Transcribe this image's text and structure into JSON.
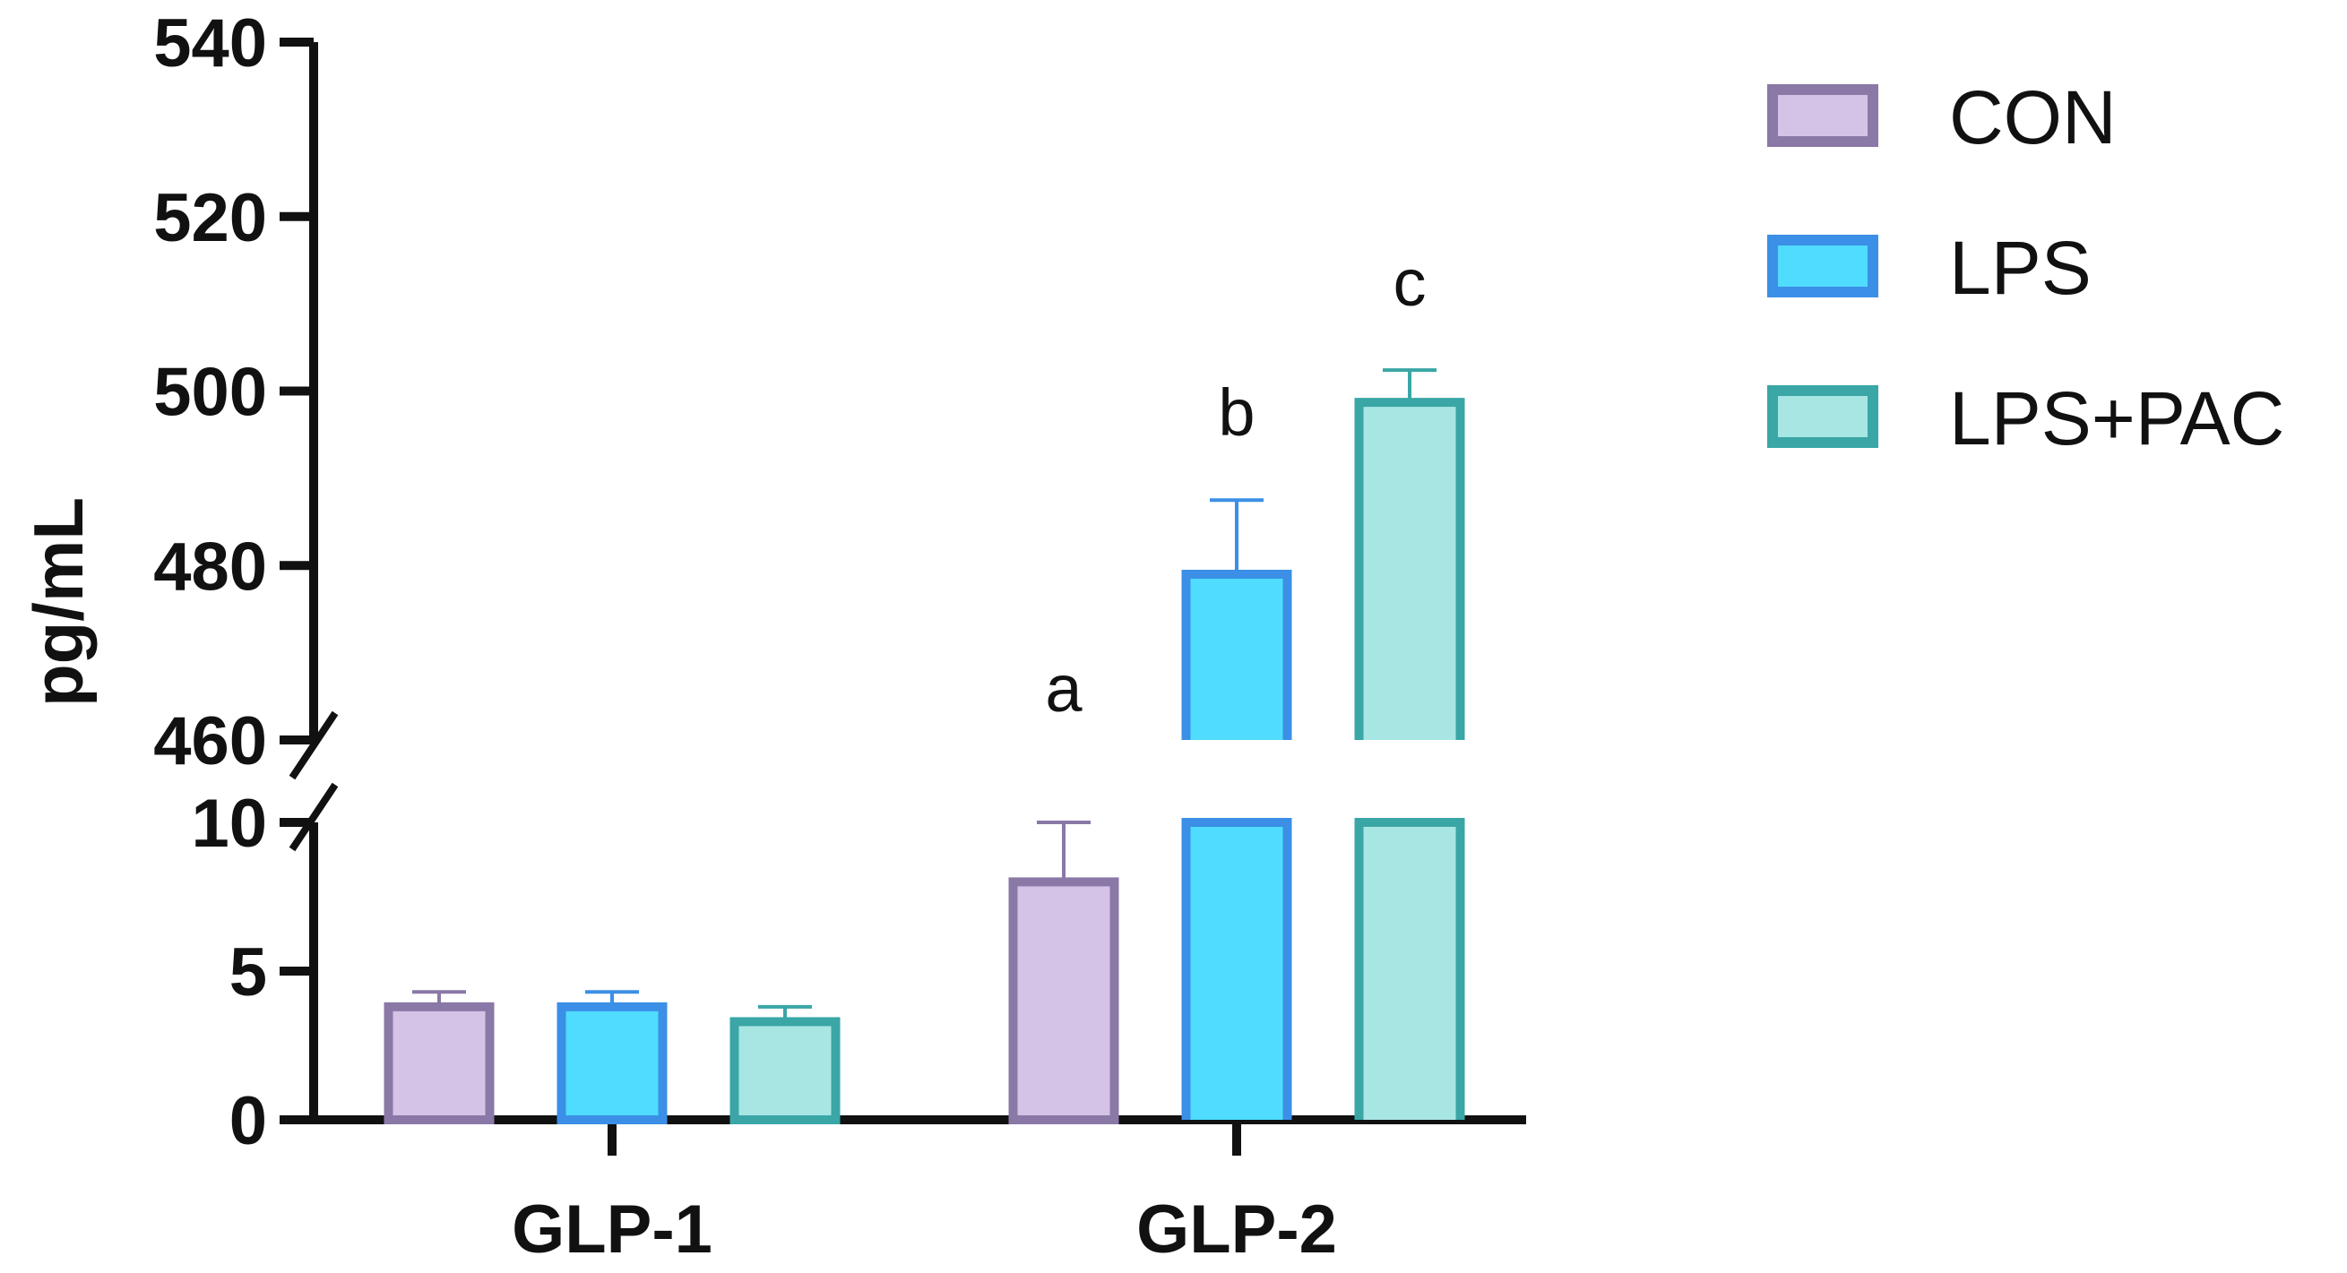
{
  "chart_data": {
    "type": "bar",
    "title": "",
    "xlabel": "",
    "ylabel": "pg/mL",
    "categories": [
      "GLP-1",
      "GLP-2"
    ],
    "series": [
      {
        "name": "CON",
        "values": [
          3.8,
          8.0
        ],
        "errors": [
          0.5,
          2.0
        ],
        "fill": "#d4c3e6",
        "stroke": "#8a78a6"
      },
      {
        "name": "LPS",
        "values": [
          3.8,
          479.0
        ],
        "errors": [
          0.5,
          8.5
        ],
        "fill": "#4fdcff",
        "stroke": "#3b8fe6"
      },
      {
        "name": "LPS+PAC",
        "values": [
          3.3,
          498.7
        ],
        "errors": [
          0.5,
          3.7
        ],
        "fill": "#a8e6e4",
        "stroke": "#3aa6a6"
      }
    ],
    "significance": [
      {
        "category": "GLP-2",
        "series": "CON",
        "letter": "a"
      },
      {
        "category": "GLP-2",
        "series": "LPS",
        "letter": "b"
      },
      {
        "category": "GLP-2",
        "series": "LPS+PAC",
        "letter": "c"
      }
    ],
    "y_axis": {
      "broken": true,
      "lower_segment": {
        "range": [
          0,
          10
        ],
        "ticks": [
          0,
          5,
          10
        ]
      },
      "upper_segment": {
        "range": [
          460,
          540
        ],
        "ticks": [
          460,
          480,
          500,
          520,
          540
        ]
      }
    },
    "grid": false,
    "legend_position": "top-right"
  }
}
